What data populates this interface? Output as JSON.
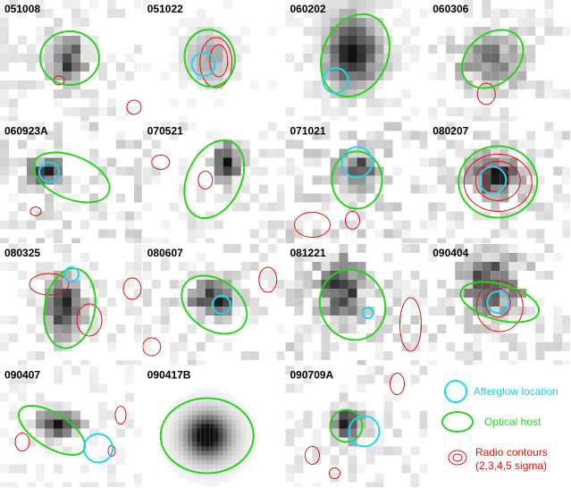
{
  "panels": [
    {
      "label": "051008"
    },
    {
      "label": "051022"
    },
    {
      "label": "060202"
    },
    {
      "label": "060306"
    },
    {
      "label": "060923A"
    },
    {
      "label": "070521"
    },
    {
      "label": "071021"
    },
    {
      "label": "080207"
    },
    {
      "label": "080325"
    },
    {
      "label": "080607"
    },
    {
      "label": "081221"
    },
    {
      "label": "090404"
    },
    {
      "label": "090407"
    },
    {
      "label": "090417B"
    },
    {
      "label": "090709A"
    }
  ],
  "legend": {
    "afterglow": "Afterglow location",
    "host": "Optical host",
    "radio": [
      "Radio contours",
      "(2,3,4,5 sigma)"
    ]
  }
}
